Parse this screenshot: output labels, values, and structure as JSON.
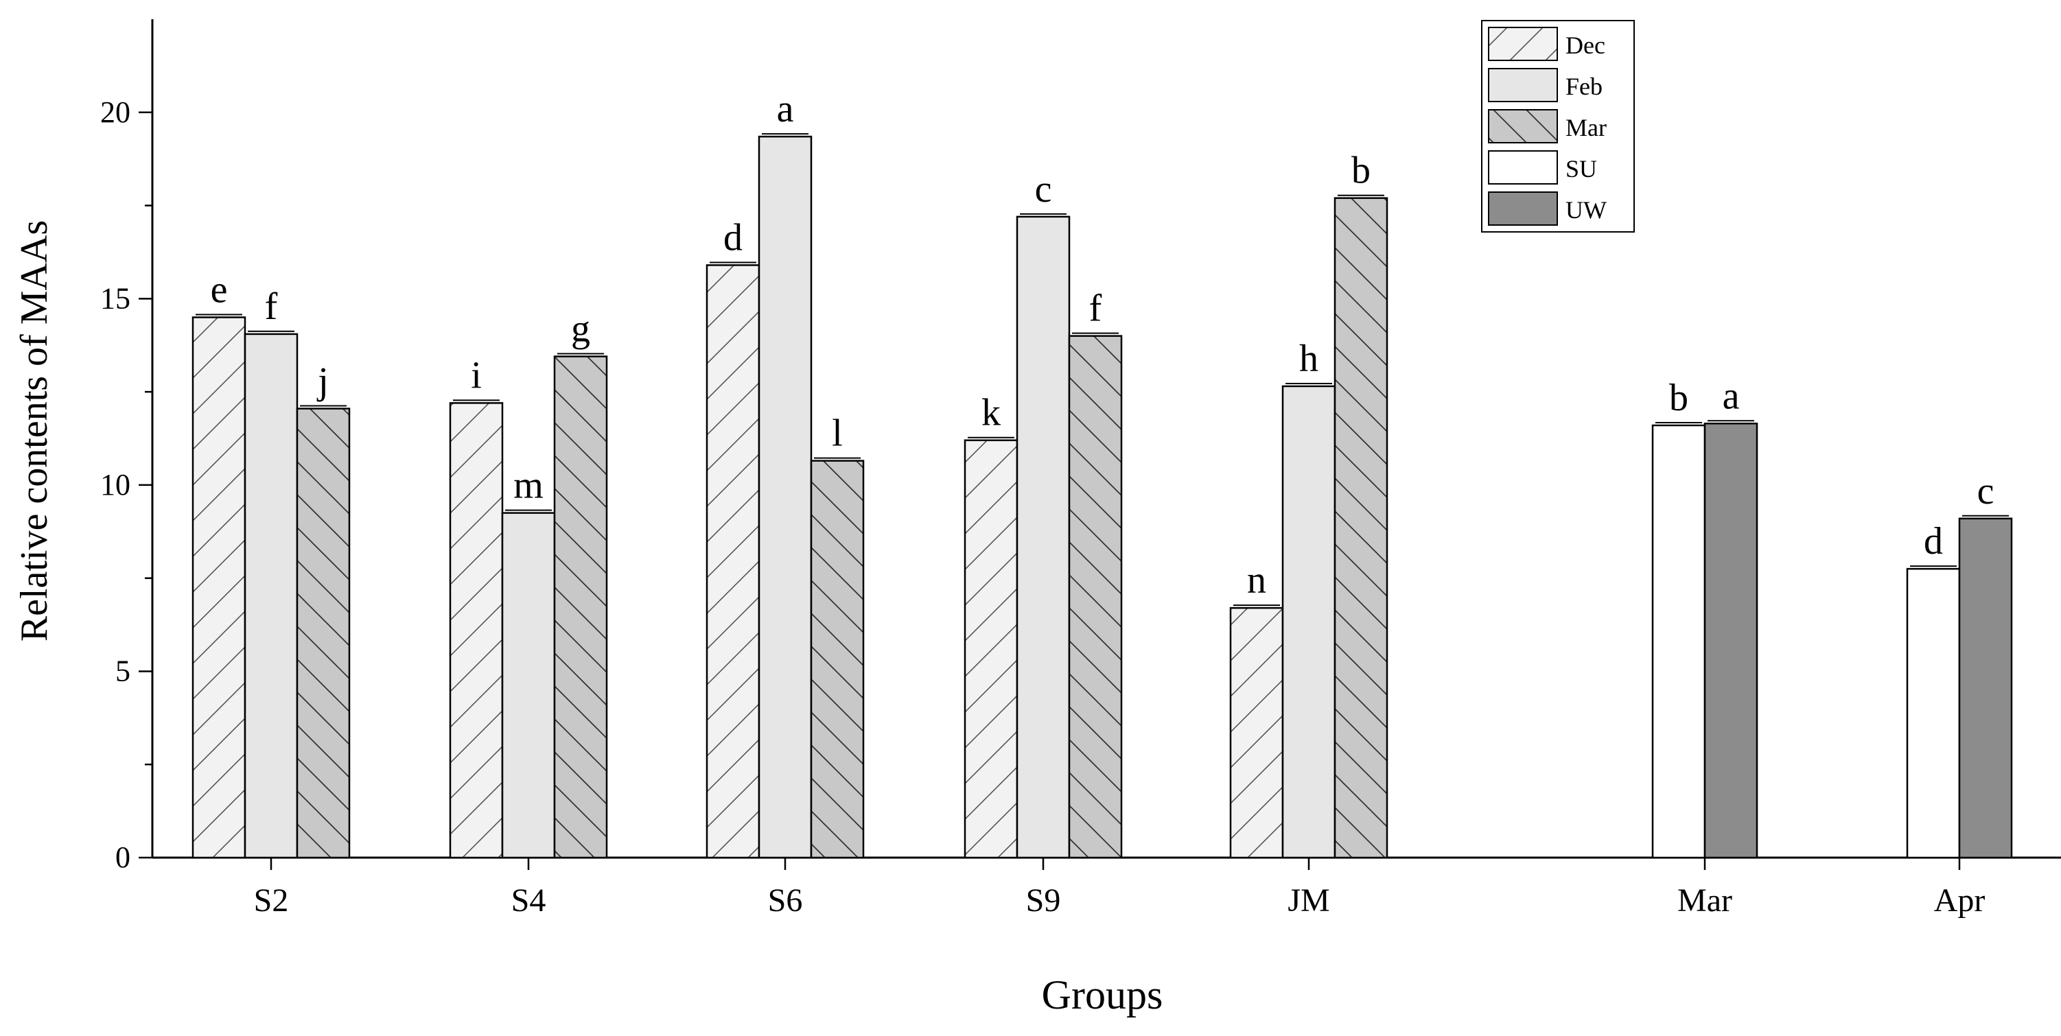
{
  "chart_data": {
    "type": "bar",
    "xlabel": "Groups",
    "ylabel": "Relative contents of MAAs",
    "ylim": [
      0,
      22.5
    ],
    "yticks": [
      0,
      5,
      10,
      15,
      20
    ],
    "grid": false,
    "legend_position": "top-right",
    "series": [
      {
        "name": "Dec",
        "color": "#f2f2f2",
        "pattern": "diagonal-forward",
        "points": [
          {
            "group": "S2",
            "value": 14.5,
            "label": "e"
          },
          {
            "group": "S4",
            "value": 12.2,
            "label": "i"
          },
          {
            "group": "S6",
            "value": 15.9,
            "label": "d"
          },
          {
            "group": "S9",
            "value": 11.2,
            "label": "k"
          },
          {
            "group": "JM",
            "value": 6.7,
            "label": "n"
          }
        ]
      },
      {
        "name": "Feb",
        "color": "#e6e6e6",
        "pattern": "none",
        "points": [
          {
            "group": "S2",
            "value": 14.05,
            "label": "f"
          },
          {
            "group": "S4",
            "value": 9.25,
            "label": "m"
          },
          {
            "group": "S6",
            "value": 19.35,
            "label": "a"
          },
          {
            "group": "S9",
            "value": 17.2,
            "label": "c"
          },
          {
            "group": "JM",
            "value": 12.65,
            "label": "h"
          }
        ]
      },
      {
        "name": "Mar",
        "color": "#c8c8c8",
        "pattern": "diagonal-back",
        "points": [
          {
            "group": "S2",
            "value": 12.05,
            "label": "j"
          },
          {
            "group": "S4",
            "value": 13.45,
            "label": "g"
          },
          {
            "group": "S6",
            "value": 10.65,
            "label": "l"
          },
          {
            "group": "S9",
            "value": 14.0,
            "label": "f"
          },
          {
            "group": "JM",
            "value": 17.7,
            "label": "b"
          }
        ]
      },
      {
        "name": "SU",
        "color": "#ffffff",
        "pattern": "none",
        "points": [
          {
            "group": "Mar",
            "value": 11.6,
            "label": "b"
          },
          {
            "group": "Apr",
            "value": 7.75,
            "label": "d"
          }
        ]
      },
      {
        "name": "UW",
        "color": "#8c8c8c",
        "pattern": "none",
        "points": [
          {
            "group": "Mar",
            "value": 11.65,
            "label": "a"
          },
          {
            "group": "Apr",
            "value": 9.1,
            "label": "c"
          }
        ]
      }
    ],
    "groups": [
      "S2",
      "S4",
      "S6",
      "S9",
      "JM",
      "Mar",
      "Apr"
    ]
  }
}
